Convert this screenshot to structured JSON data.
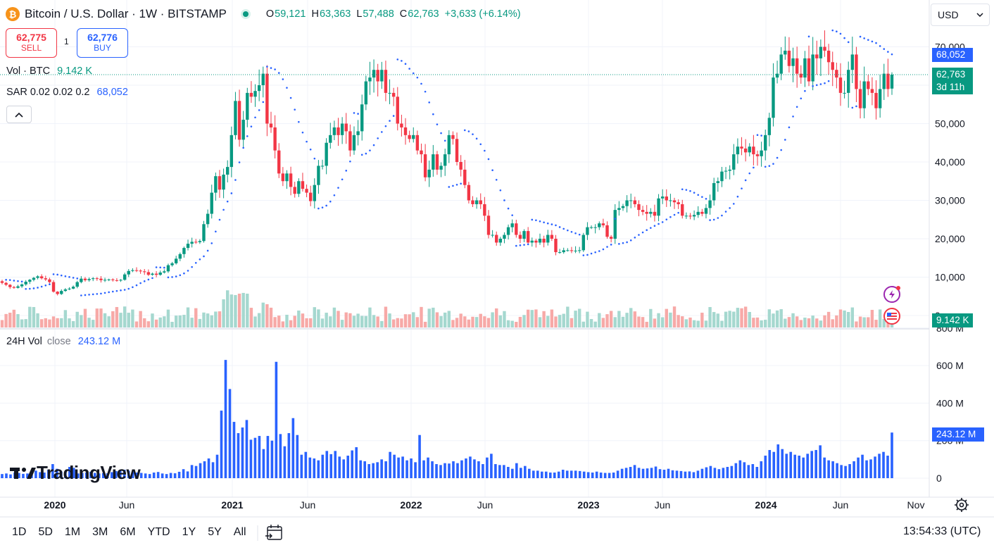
{
  "header": {
    "symbol_title": "Bitcoin / U.S. Dollar · 1W · BITSTAMP",
    "ohlc": {
      "o_label": "O",
      "o": "59,121",
      "h_label": "H",
      "h": "63,363",
      "l_label": "L",
      "l": "57,488",
      "c_label": "C",
      "c": "62,763",
      "change": "+3,633 (+6.14%)"
    }
  },
  "trade": {
    "sell_price": "62,775",
    "sell_label": "SELL",
    "spread": "1",
    "buy_price": "62,776",
    "buy_label": "BUY"
  },
  "legend": {
    "vol_label": "Vol · BTC",
    "vol_value": "9.142 K",
    "sar_label": "SAR 0.02 0.02 0.2",
    "sar_value": "68,052",
    "vol24_label": "24H Vol",
    "vol24_sub": "close",
    "vol24_value": "243.12 M"
  },
  "currency": "USD",
  "price_tags": {
    "sar": "68,052",
    "last": "62,763",
    "countdown": "3d 11h",
    "volume": "9.142 K",
    "vol24": "243.12 M"
  },
  "price_axis_ticks": [
    "70,000",
    "60,000",
    "50,000",
    "40,000",
    "30,000",
    "20,000",
    "10,000",
    "0"
  ],
  "vol24_axis_ticks": [
    "800 M",
    "600 M",
    "400 M",
    "200 M",
    "0"
  ],
  "time_axis_labels": [
    "2020",
    "Jun",
    "2021",
    "Jun",
    "2022",
    "Jun",
    "2023",
    "Jun",
    "2024",
    "Jun",
    "Nov"
  ],
  "timeframes": [
    "1D",
    "5D",
    "1M",
    "3M",
    "6M",
    "YTD",
    "1Y",
    "5Y",
    "All"
  ],
  "clock": "13:54:33 (UTC)",
  "logo_text": "TradingView",
  "colors": {
    "up": "#089981",
    "down": "#f23645",
    "sar": "#2962ff",
    "vol24": "#2962ff",
    "vol_up": "#a5d8cf",
    "vol_down": "#f7a9a7"
  },
  "chart_data": [
    {
      "type": "candlestick",
      "title": "Bitcoin / U.S. Dollar · 1W · BITSTAMP",
      "interval": "1W",
      "x_range": [
        "2019-11",
        "2024-10"
      ],
      "ylim": [
        0,
        75000
      ],
      "grid": true,
      "approx_weekly_closes": [
        8500,
        8000,
        7400,
        7200,
        7600,
        8100,
        8800,
        9300,
        9800,
        10200,
        9700,
        9400,
        8700,
        6200,
        5600,
        6400,
        6800,
        7000,
        7500,
        8700,
        9600,
        9200,
        9500,
        9700,
        9600,
        9200,
        9300,
        9400,
        9200,
        9100,
        9300,
        10700,
        11600,
        11800,
        11700,
        11500,
        11300,
        10600,
        10900,
        10600,
        11200,
        11500,
        13100,
        13600,
        14800,
        16000,
        17600,
        18700,
        19200,
        19100,
        19400,
        23800,
        26500,
        32000,
        36300,
        32800,
        36700,
        38700,
        47000,
        55900,
        45800,
        51000,
        58000,
        57000,
        58500,
        60000,
        63000,
        50000,
        49000,
        43000,
        37000,
        35000,
        37000,
        33500,
        31700,
        35000,
        33000,
        32000,
        29800,
        34000,
        39000,
        39000,
        45000,
        47000,
        49000,
        47000,
        50000,
        48000,
        43000,
        47000,
        48000,
        55000,
        61000,
        62000,
        64000,
        61000,
        64000,
        58000,
        58000,
        57000,
        50000,
        49000,
        47000,
        46000,
        47000,
        43000,
        42000,
        36000,
        38000,
        42000,
        38000,
        39000,
        42000,
        47000,
        46000,
        40000,
        38000,
        34000,
        30000,
        29000,
        30000,
        29000,
        26000,
        21000,
        21000,
        19000,
        20000,
        21000,
        23000,
        24000,
        21000,
        20000,
        22000,
        19000,
        19500,
        19000,
        20000,
        19000,
        21000,
        20000,
        16500,
        16500,
        17000,
        17000,
        16800,
        16900,
        17000,
        21000,
        23000,
        23000,
        23000,
        24000,
        23500,
        20500,
        20000,
        27500,
        28000,
        28500,
        30000,
        30000,
        29000,
        27500,
        27000,
        26500,
        27000,
        26000,
        30500,
        31000,
        30000,
        30000,
        29500,
        29000,
        26000,
        26000,
        25800,
        26200,
        27000,
        26500,
        28000,
        30000,
        34500,
        35000,
        37500,
        37700,
        38000,
        42000,
        44000,
        43500,
        42500,
        44000,
        42000,
        41500,
        43000,
        47000,
        51500,
        62000,
        63000,
        68000,
        69000,
        65000,
        67000,
        63000,
        62000,
        67000,
        61000,
        68000,
        67000,
        70000,
        69000,
        66000,
        64000,
        62000,
        58000,
        58000,
        64000,
        68000,
        59000,
        54000,
        61000,
        59000,
        58000,
        54000,
        59000,
        63000,
        59000,
        62763
      ],
      "last": {
        "open": 59121,
        "high": 63363,
        "low": 57488,
        "close": 62763,
        "change": 3633,
        "change_pct": 6.14
      }
    },
    {
      "type": "parabolic_sar",
      "name": "SAR 0.02 0.02 0.2",
      "last_value": 68052
    },
    {
      "type": "bar",
      "name": "Vol · BTC",
      "last_value": 9142
    },
    {
      "type": "bar",
      "name": "24H Vol close",
      "ylim": [
        0,
        800000000
      ],
      "approx_weekly_values_millions": [
        22,
        25,
        20,
        30,
        28,
        23,
        25,
        25,
        40,
        32,
        30,
        45,
        75,
        50,
        35,
        36,
        60,
        55,
        25,
        28,
        30,
        34,
        28,
        25,
        27,
        26,
        32,
        38,
        40,
        45,
        40,
        35,
        30,
        28,
        25,
        22,
        30,
        33,
        25,
        22,
        28,
        26,
        34,
        48,
        36,
        70,
        65,
        80,
        90,
        105,
        85,
        125,
        360,
        630,
        475,
        300,
        240,
        270,
        310,
        205,
        215,
        225,
        155,
        225,
        200,
        620,
        235,
        170,
        240,
        320,
        230,
        125,
        140,
        110,
        105,
        95,
        125,
        145,
        128,
        145,
        115,
        100,
        120,
        148,
        165,
        95,
        90,
        75,
        80,
        85,
        100,
        90,
        140,
        125,
        110,
        115,
        95,
        105,
        85,
        230,
        95,
        110,
        90,
        75,
        70,
        80,
        78,
        90,
        80,
        95,
        105,
        115,
        100,
        90,
        75,
        110,
        130,
        75,
        70,
        70,
        60,
        50,
        80,
        55,
        65,
        50,
        40,
        40,
        35,
        35,
        30,
        30,
        35,
        45,
        40,
        40,
        40,
        38,
        35,
        32,
        30,
        35,
        30,
        28,
        28,
        30,
        40,
        50,
        55,
        60,
        70,
        55,
        50,
        52,
        55,
        62,
        48,
        45,
        50,
        42,
        40,
        38,
        35,
        36,
        32,
        40,
        50,
        58,
        65,
        55,
        48,
        55,
        60,
        65,
        80,
        95,
        85,
        70,
        75,
        60,
        90,
        120,
        150,
        140,
        180,
        155,
        130,
        140,
        125,
        120,
        110,
        130,
        145,
        150,
        175,
        110,
        95,
        90,
        80,
        70,
        65,
        75,
        90,
        110,
        125,
        95,
        100,
        115,
        130,
        140,
        120,
        243.12
      ],
      "last_value": 243120000
    }
  ]
}
